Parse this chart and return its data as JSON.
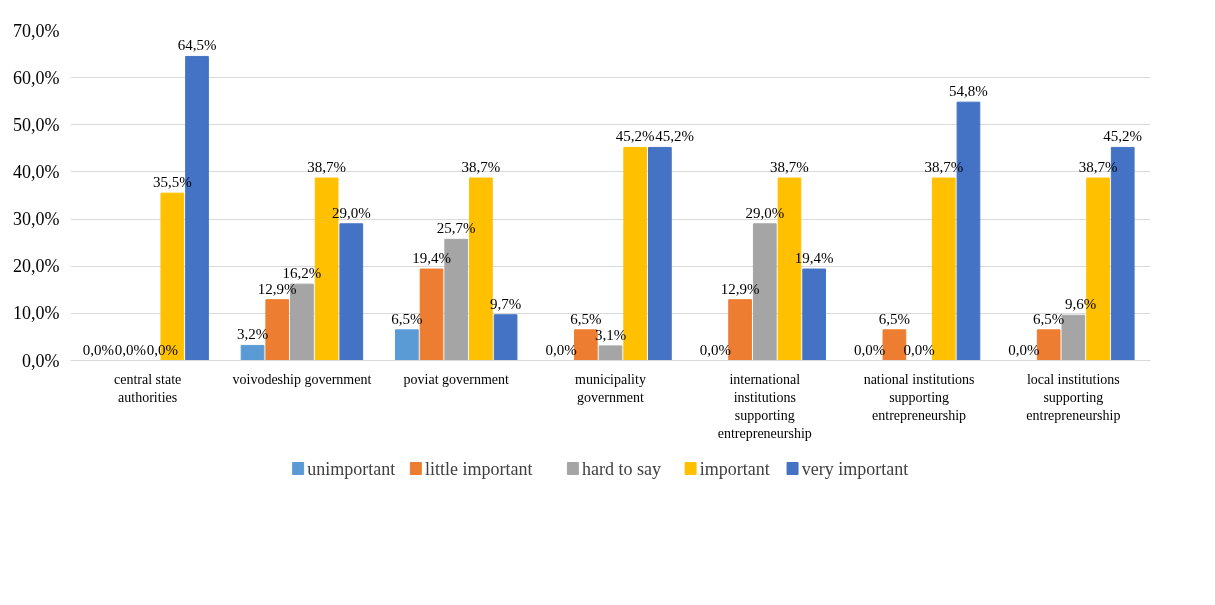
{
  "chart_data": {
    "type": "bar",
    "categories": [
      "central state authorities",
      "voivodeship government",
      "poviat government",
      "municipality government",
      "international institutions supporting entrepreneurship",
      "national institutions supporting entrepreneurship",
      "local institutions supporting entrepreneurship"
    ],
    "series": [
      {
        "name": "unimportant",
        "color": "#5b9bd5",
        "values": [
          0,
          3.2,
          6.5,
          0,
          0,
          0,
          0
        ],
        "value_labels": [
          "0,0%",
          "3,2%",
          "6,5%",
          "0,0%",
          "0,0%",
          "0,0%",
          "0,0%"
        ]
      },
      {
        "name": "little important",
        "color": "#ed7d31",
        "values": [
          0,
          12.9,
          19.4,
          6.5,
          12.9,
          6.5,
          6.5
        ],
        "value_labels": [
          "0,0%",
          "12,9%",
          "19,4%",
          "6,5%",
          "12,9%",
          "6,5%",
          "6,5%"
        ]
      },
      {
        "name": "hard to say",
        "color": "#a5a5a5",
        "values": [
          0,
          16.2,
          25.7,
          3.1,
          29.0,
          0,
          9.6
        ],
        "value_labels": [
          "0,0%",
          "16,2%",
          "25,7%",
          "3,1%",
          "29,0%",
          "0,0%",
          "9,6%"
        ]
      },
      {
        "name": "important",
        "color": "#ffc000",
        "values": [
          35.5,
          38.7,
          38.7,
          45.2,
          38.7,
          38.7,
          38.7
        ],
        "value_labels": [
          "35,5%",
          "38,7%",
          "38,7%",
          "45,2%",
          "38,7%",
          "38,7%",
          "38,7%"
        ]
      },
      {
        "name": "very important",
        "color": "#4472c4",
        "values": [
          64.5,
          29.0,
          9.7,
          45.2,
          19.4,
          54.8,
          45.2
        ],
        "value_labels": [
          "64,5%",
          "29,0%",
          "9,7%",
          "45,2%",
          "19,4%",
          "54,8%",
          "45,2%"
        ]
      }
    ],
    "ylim": [
      0,
      70
    ],
    "yticks": [
      {
        "value": 0,
        "label": "0,0%"
      },
      {
        "value": 10,
        "label": "10,0%"
      },
      {
        "value": 20,
        "label": "20,0%"
      },
      {
        "value": 30,
        "label": "30,0%"
      },
      {
        "value": 40,
        "label": "40,0%"
      },
      {
        "value": 50,
        "label": "50,0%"
      },
      {
        "value": 60,
        "label": "60,0%"
      },
      {
        "value": 70,
        "label": "70,0%"
      }
    ],
    "grid": "y",
    "legend": "bottom"
  }
}
